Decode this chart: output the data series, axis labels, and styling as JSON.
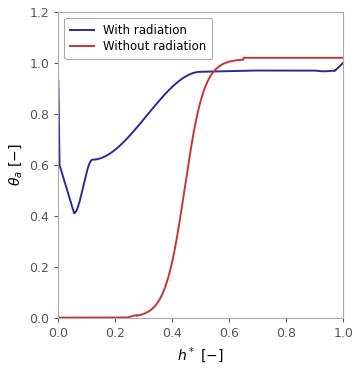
{
  "title": "",
  "xlabel": "$h^*\\ [-]$",
  "ylabel": "$\\theta_a\\ [-]$",
  "xlim": [
    0,
    1
  ],
  "ylim": [
    0,
    1.2
  ],
  "xticks": [
    0,
    0.2,
    0.4,
    0.6,
    0.8,
    1
  ],
  "yticks": [
    0,
    0.2,
    0.4,
    0.6,
    0.8,
    1,
    1.2
  ],
  "blue_color": "#2a2a9e",
  "red_color": "#cc3333",
  "legend_labels": [
    "With radiation",
    "Without radiation"
  ],
  "background_color": "#ffffff",
  "spine_color": "#aaaaaa"
}
